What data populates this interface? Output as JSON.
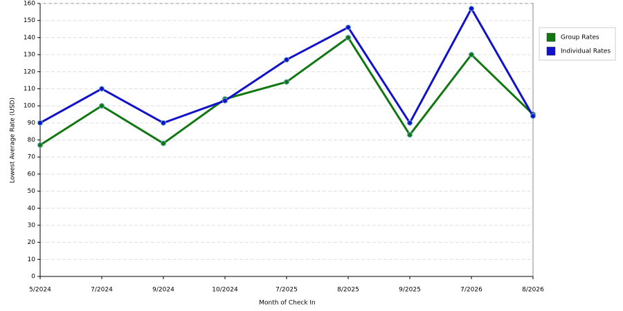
{
  "chart_data": {
    "type": "line",
    "x_label": "Month of Check In",
    "y_label": "Lowest Average Rate (USD)",
    "categories": [
      "5/2024",
      "7/2024",
      "9/2024",
      "10/2024",
      "7/2025",
      "8/2025",
      "9/2025",
      "7/2026",
      "8/2026"
    ],
    "series": [
      {
        "name": "Group Rates",
        "color": "#117711",
        "values": [
          77,
          100,
          78,
          104,
          114,
          140,
          83,
          130,
          95
        ]
      },
      {
        "name": "Individual Rates",
        "color": "#1111cc",
        "values": [
          90,
          110,
          90,
          103,
          127,
          146,
          90,
          157,
          94
        ]
      }
    ],
    "ylim": [
      0,
      160
    ],
    "yticks": [
      0,
      10,
      20,
      30,
      40,
      50,
      60,
      70,
      80,
      90,
      100,
      110,
      120,
      130,
      140,
      150,
      160
    ],
    "grid": true,
    "legend": "right"
  }
}
